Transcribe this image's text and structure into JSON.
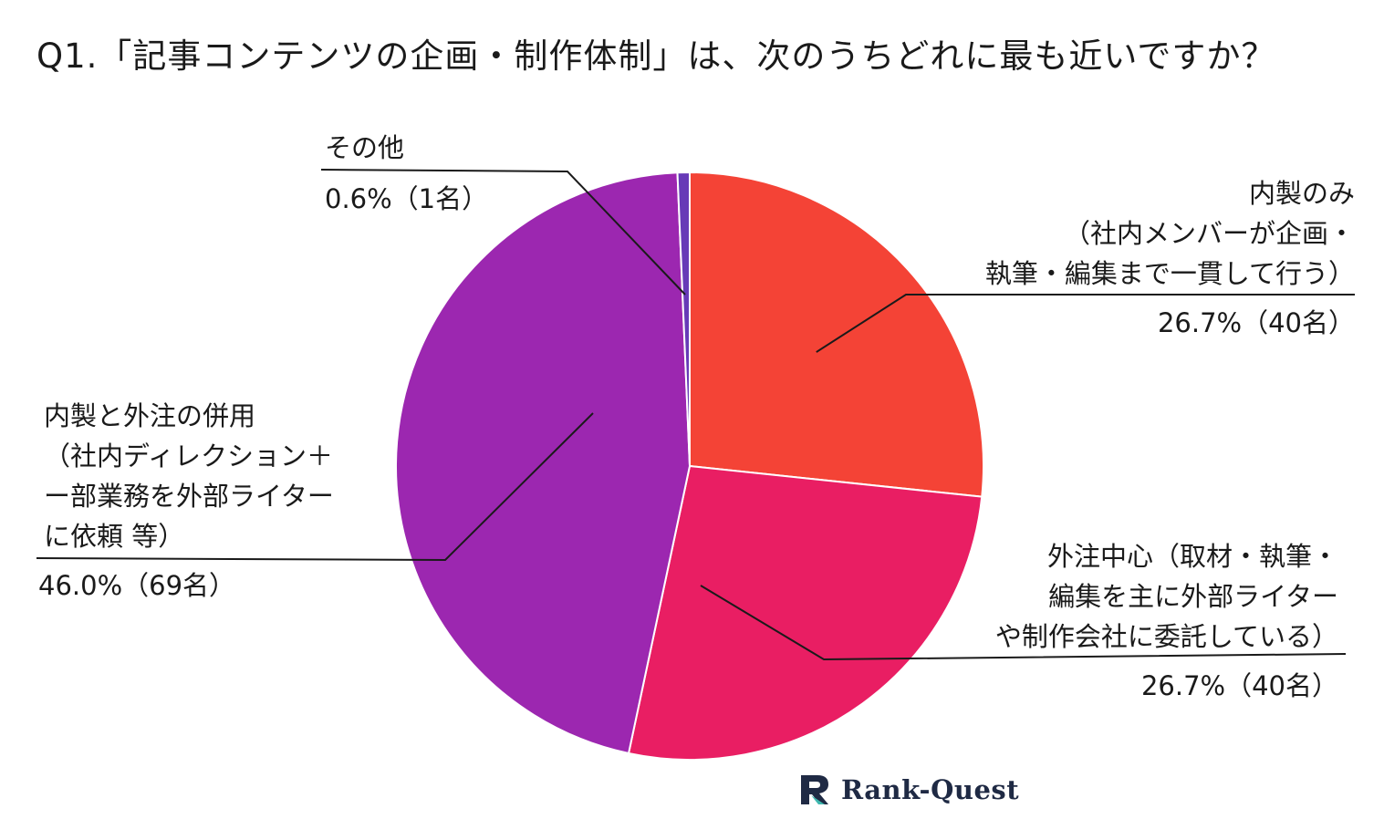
{
  "title": "Q1.「記事コンテンツの企画・制作体制」は、次のうちどれに最も近いですか？",
  "logo": {
    "name": "Rank-Quest",
    "icon": "rank-quest-logo-icon"
  },
  "colors": {
    "slice_inhouse": "#f44336",
    "slice_outsource": "#e91e63",
    "slice_mixed": "#9c27b0",
    "slice_other": "#673ab7",
    "leader_line": "#1a1a1a",
    "logo_dark": "#1f2a44",
    "logo_teal": "#3fb8af"
  },
  "chart_data": {
    "type": "pie",
    "title": "Q1.「記事コンテンツの企画・制作体制」は、次のうちどれに最も近いですか？",
    "slices": [
      {
        "key": "inhouse",
        "lines": [
          "内製のみ",
          "（社内メンバーが企画・",
          "執筆・編集まで一貫して行う）"
        ],
        "pct_label": "26.7%（40名）",
        "value": 40,
        "percent": 26.7
      },
      {
        "key": "outsource",
        "lines": [
          "外注中心（取材・執筆・",
          "編集を主に外部ライター",
          "や制作会社に委託している）"
        ],
        "pct_label": "26.7%（40名）",
        "value": 40,
        "percent": 26.7
      },
      {
        "key": "mixed",
        "lines": [
          "内製と外注の併用",
          "（社内ディレクション＋",
          "ー部業務を外部ライター",
          "に依頼 等）"
        ],
        "pct_label": "46.0%（69名）",
        "value": 69,
        "percent": 46.0
      },
      {
        "key": "other",
        "lines": [
          "その他"
        ],
        "pct_label": "0.6%（1名）",
        "value": 1,
        "percent": 0.6
      }
    ]
  }
}
